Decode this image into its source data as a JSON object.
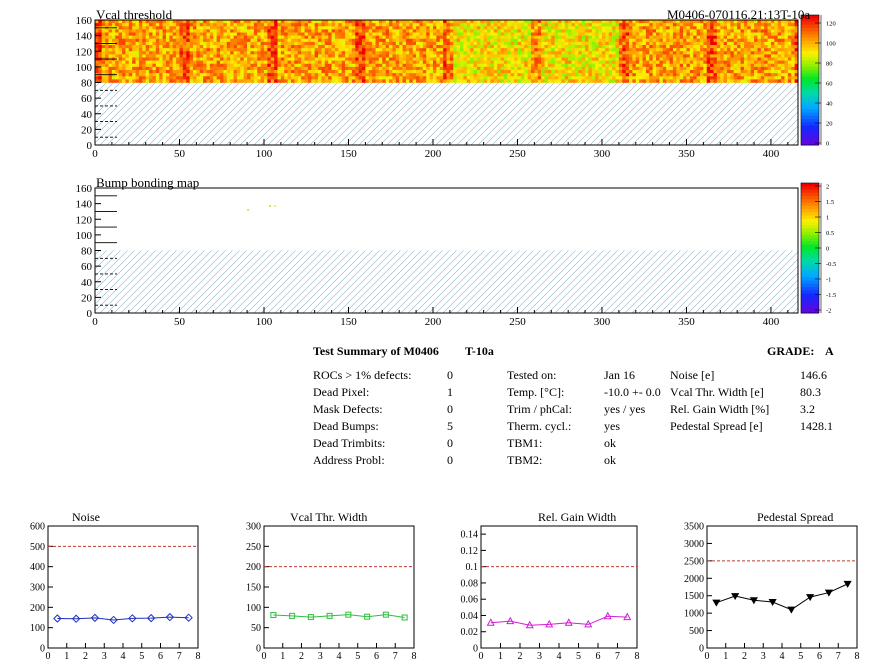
{
  "header": {
    "top_title": "Vcal threshold",
    "run_label": "M0406-070116.21:13T-10a",
    "bump_title": "Bump bonding map"
  },
  "colors": {
    "hatch": "#8fb3c9",
    "dashed_limit": "#c0392b",
    "noise_series": "#1f2fbf",
    "vcal_series": "#2cbf3c",
    "gain_series": "#d21fd2",
    "pedestal_series": "#000000"
  },
  "maps": {
    "x_ticks": [
      0,
      50,
      100,
      150,
      200,
      250,
      300,
      350,
      400
    ],
    "y_ticks": [
      0,
      20,
      40,
      60,
      80,
      100,
      120,
      140,
      160
    ],
    "x_max": 416,
    "y_max": 160,
    "top_palette_ticks": [
      "120",
      "100",
      "80",
      "60",
      "40",
      "20",
      "0"
    ],
    "bump_palette_ticks": [
      "2",
      "1.5",
      "1",
      "0.5",
      "0",
      "-0.5",
      "-1",
      "-1.5",
      "-2"
    ]
  },
  "summary": {
    "title": "Test Summary of M0406",
    "temp": "T-10a",
    "grade_label": "GRADE:",
    "grade": "A",
    "col1": [
      {
        "label": "ROCs > 1% defects:",
        "value": "0"
      },
      {
        "label": "Dead Pixel:",
        "value": "1"
      },
      {
        "label": "Mask Defects:",
        "value": "0"
      },
      {
        "label": "Dead Bumps:",
        "value": "5"
      },
      {
        "label": "Dead Trimbits:",
        "value": "0"
      },
      {
        "label": "Address Probl:",
        "value": "0"
      }
    ],
    "col2": [
      {
        "label": "Tested on:",
        "value": "Jan 16"
      },
      {
        "label": "Temp. [°C]:",
        "value": "-10.0 +- 0.0"
      },
      {
        "label": "Trim / phCal:",
        "value": "yes / yes"
      },
      {
        "label": "Therm. cycl.:",
        "value": "yes"
      },
      {
        "label": "TBM1:",
        "value": "ok"
      },
      {
        "label": "TBM2:",
        "value": "ok"
      }
    ],
    "col3": [
      {
        "label": "Noise [e]",
        "value": "146.6"
      },
      {
        "label": "Vcal Thr. Width [e]",
        "value": "80.3"
      },
      {
        "label": "Rel. Gain Width [%]",
        "value": "3.2"
      },
      {
        "label": "Pedestal Spread [e]",
        "value": "1428.1"
      }
    ]
  },
  "chart_data": [
    {
      "type": "heatmap",
      "title": "Vcal threshold",
      "xlim": [
        0,
        416
      ],
      "ylim": [
        0,
        160
      ],
      "zlim": [
        0,
        130
      ],
      "filled_rows": [
        80,
        160
      ],
      "typical_value": 105,
      "lighter_columns_value": 90
    },
    {
      "type": "heatmap",
      "title": "Bump bonding map",
      "xlim": [
        0,
        416
      ],
      "ylim": [
        0,
        160
      ],
      "zlim": [
        -2,
        2
      ],
      "defects": [
        {
          "x": 90,
          "y": 133,
          "value": 0.6
        },
        {
          "x": 103,
          "y": 138,
          "value": 0.6
        },
        {
          "x": 106,
          "y": 138,
          "value": 0.9
        }
      ]
    },
    {
      "type": "line",
      "title": "Noise",
      "x": [
        0.5,
        1.5,
        2.5,
        3.5,
        4.5,
        5.5,
        6.5,
        7.5
      ],
      "values": [
        145,
        144,
        148,
        138,
        146,
        147,
        152,
        149
      ],
      "xlim": [
        0,
        8
      ],
      "ylim": [
        0,
        600
      ],
      "yticks": [
        0,
        100,
        200,
        300,
        400,
        500,
        600
      ],
      "limit": 500,
      "marker": "diamond"
    },
    {
      "type": "line",
      "title": "Vcal Thr. Width",
      "x": [
        0.5,
        1.5,
        2.5,
        3.5,
        4.5,
        5.5,
        6.5,
        7.5
      ],
      "values": [
        81,
        79,
        76,
        79,
        82,
        77,
        82,
        75
      ],
      "xlim": [
        0,
        8
      ],
      "ylim": [
        0,
        300
      ],
      "yticks": [
        0,
        50,
        100,
        150,
        200,
        250,
        300
      ],
      "limit": 200,
      "marker": "square"
    },
    {
      "type": "line",
      "title": "Rel. Gain Width",
      "x": [
        0.5,
        1.5,
        2.5,
        3.5,
        4.5,
        5.5,
        6.5,
        7.5
      ],
      "values": [
        0.031,
        0.033,
        0.028,
        0.029,
        0.031,
        0.029,
        0.039,
        0.038
      ],
      "xlim": [
        0,
        8
      ],
      "ylim": [
        0,
        0.15
      ],
      "yticks": [
        0,
        0.02,
        0.04,
        0.06,
        0.08,
        0.1,
        0.12,
        0.14
      ],
      "limit": 0.1,
      "marker": "triangle"
    },
    {
      "type": "line",
      "title": "Pedestal Spread",
      "x": [
        0.5,
        1.5,
        2.5,
        3.5,
        4.5,
        5.5,
        6.5,
        7.5
      ],
      "values": [
        1300,
        1490,
        1370,
        1320,
        1100,
        1460,
        1590,
        1840
      ],
      "xlim": [
        0,
        8
      ],
      "ylim": [
        0,
        3500
      ],
      "yticks": [
        0,
        500,
        1000,
        1500,
        2000,
        2500,
        3000,
        3500
      ],
      "limit": 2500,
      "marker": "triangle-down"
    }
  ]
}
